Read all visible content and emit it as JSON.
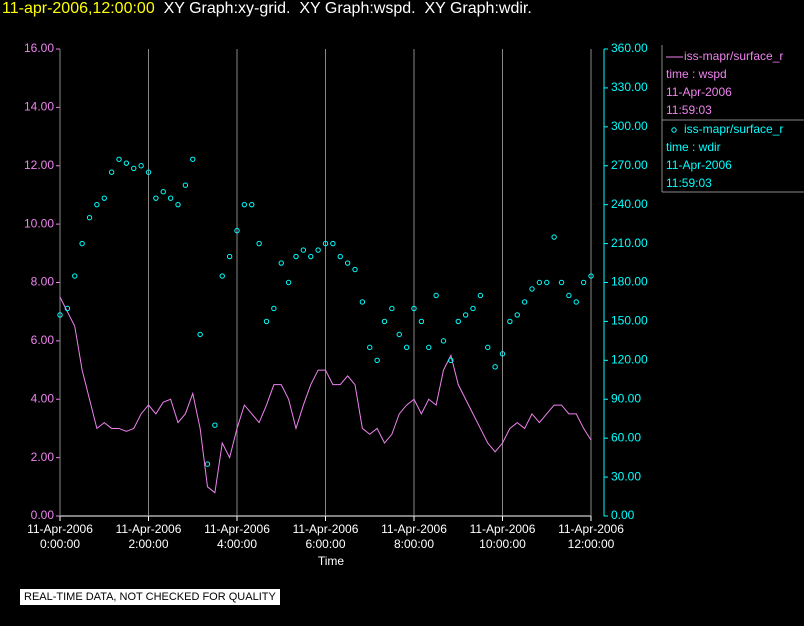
{
  "header": {
    "time": "11-apr-2006,12:00:00",
    "title": "XY Graph:xy-grid.  XY Graph:wspd.  XY Graph:wdir."
  },
  "note": "REAL-TIME DATA, NOT CHECKED FOR QUALITY",
  "chart_data": {
    "type": "line",
    "xlabel": "Time",
    "x": [
      "2006-04-11T00:00:00",
      "2006-04-11T00:10:00",
      "2006-04-11T00:20:00",
      "2006-04-11T00:30:00",
      "2006-04-11T00:40:00",
      "2006-04-11T00:50:00",
      "2006-04-11T01:00:00",
      "2006-04-11T01:10:00",
      "2006-04-11T01:20:00",
      "2006-04-11T01:30:00",
      "2006-04-11T01:40:00",
      "2006-04-11T01:50:00",
      "2006-04-11T02:00:00",
      "2006-04-11T02:10:00",
      "2006-04-11T02:20:00",
      "2006-04-11T02:30:00",
      "2006-04-11T02:40:00",
      "2006-04-11T02:50:00",
      "2006-04-11T03:00:00",
      "2006-04-11T03:10:00",
      "2006-04-11T03:20:00",
      "2006-04-11T03:30:00",
      "2006-04-11T03:40:00",
      "2006-04-11T03:50:00",
      "2006-04-11T04:00:00",
      "2006-04-11T04:10:00",
      "2006-04-11T04:20:00",
      "2006-04-11T04:30:00",
      "2006-04-11T04:40:00",
      "2006-04-11T04:50:00",
      "2006-04-11T05:00:00",
      "2006-04-11T05:10:00",
      "2006-04-11T05:20:00",
      "2006-04-11T05:30:00",
      "2006-04-11T05:40:00",
      "2006-04-11T05:50:00",
      "2006-04-11T06:00:00",
      "2006-04-11T06:10:00",
      "2006-04-11T06:20:00",
      "2006-04-11T06:30:00",
      "2006-04-11T06:40:00",
      "2006-04-11T06:50:00",
      "2006-04-11T07:00:00",
      "2006-04-11T07:10:00",
      "2006-04-11T07:20:00",
      "2006-04-11T07:30:00",
      "2006-04-11T07:40:00",
      "2006-04-11T07:50:00",
      "2006-04-11T08:00:00",
      "2006-04-11T08:10:00",
      "2006-04-11T08:20:00",
      "2006-04-11T08:30:00",
      "2006-04-11T08:40:00",
      "2006-04-11T08:50:00",
      "2006-04-11T09:00:00",
      "2006-04-11T09:10:00",
      "2006-04-11T09:20:00",
      "2006-04-11T09:30:00",
      "2006-04-11T09:40:00",
      "2006-04-11T09:50:00",
      "2006-04-11T10:00:00",
      "2006-04-11T10:10:00",
      "2006-04-11T10:20:00",
      "2006-04-11T10:30:00",
      "2006-04-11T10:40:00",
      "2006-04-11T10:50:00",
      "2006-04-11T11:00:00",
      "2006-04-11T11:10:00",
      "2006-04-11T11:20:00",
      "2006-04-11T11:30:00",
      "2006-04-11T11:40:00",
      "2006-04-11T11:50:00",
      "2006-04-11T12:00:00"
    ],
    "xlim": [
      "2006-04-11T00:00:00",
      "2006-04-11T12:00:00"
    ],
    "xticks": [
      {
        "value": "2006-04-11T00:00:00",
        "label": "11-Apr-2006\n0:00:00"
      },
      {
        "value": "2006-04-11T02:00:00",
        "label": "11-Apr-2006\n2:00:00"
      },
      {
        "value": "2006-04-11T04:00:00",
        "label": "11-Apr-2006\n4:00:00"
      },
      {
        "value": "2006-04-11T06:00:00",
        "label": "11-Apr-2006\n6:00:00"
      },
      {
        "value": "2006-04-11T08:00:00",
        "label": "11-Apr-2006\n8:00:00"
      },
      {
        "value": "2006-04-11T10:00:00",
        "label": "11-Apr-2006\n10:00:00"
      },
      {
        "value": "2006-04-11T12:00:00",
        "label": "11-Apr-2006\n12:00:00"
      }
    ],
    "ylim": [
      0,
      16
    ],
    "yticks": [
      {
        "value": 0,
        "label": "0.00"
      },
      {
        "value": 2,
        "label": "2.00"
      },
      {
        "value": 4,
        "label": "4.00"
      },
      {
        "value": 6,
        "label": "6.00"
      },
      {
        "value": 8,
        "label": "8.00"
      },
      {
        "value": 10,
        "label": "10.00"
      },
      {
        "value": 12,
        "label": "12.00"
      },
      {
        "value": 14,
        "label": "14.00"
      },
      {
        "value": 16,
        "label": "16.00"
      }
    ],
    "y2lim": [
      0,
      360
    ],
    "y2ticks": [
      {
        "value": 0,
        "label": "0.00"
      },
      {
        "value": 30,
        "label": "30.00"
      },
      {
        "value": 60,
        "label": "60.00"
      },
      {
        "value": 90,
        "label": "90.00"
      },
      {
        "value": 120,
        "label": "120.00"
      },
      {
        "value": 150,
        "label": "150.00"
      },
      {
        "value": 180,
        "label": "180.00"
      },
      {
        "value": 210,
        "label": "210.00"
      },
      {
        "value": 240,
        "label": "240.00"
      },
      {
        "value": 270,
        "label": "270.00"
      },
      {
        "value": 300,
        "label": "300.00"
      },
      {
        "value": 330,
        "label": "330.00"
      },
      {
        "value": 360,
        "label": "360.00"
      }
    ],
    "grid": true,
    "series": [
      {
        "name": "iss-mapr/surface_r",
        "type": "line",
        "color": "#ee82ee",
        "label": "time : wspd",
        "date": "11-Apr-2006",
        "time": "11:59:03",
        "values": [
          7.5,
          7.0,
          6.5,
          5.0,
          4.0,
          3.0,
          3.2,
          3.0,
          3.0,
          2.9,
          3.0,
          3.5,
          3.8,
          3.5,
          3.9,
          4.0,
          3.2,
          3.5,
          4.2,
          3.0,
          1.0,
          0.8,
          2.5,
          2.0,
          3.0,
          3.8,
          3.5,
          3.2,
          3.8,
          4.5,
          4.5,
          4.0,
          3.0,
          3.8,
          4.5,
          5.0,
          5.0,
          4.5,
          4.5,
          4.8,
          4.5,
          3.0,
          2.8,
          3.0,
          2.5,
          2.8,
          3.5,
          3.8,
          4.0,
          3.5,
          4.0,
          3.8,
          5.0,
          5.5,
          4.5,
          4.0,
          3.5,
          3.0,
          2.5,
          2.2,
          2.5,
          3.0,
          3.2,
          3.0,
          3.5,
          3.2,
          3.5,
          3.8,
          3.8,
          3.5,
          3.5,
          3.0,
          2.6
        ]
      },
      {
        "name": "iss-mapr/surface_r",
        "type": "scatter",
        "axis": "y2",
        "color": "#00ffff",
        "label": "time : wdir",
        "date": "11-Apr-2006",
        "time": "11:59:03",
        "values": [
          155,
          160,
          185,
          210,
          230,
          240,
          245,
          265,
          275,
          272,
          268,
          270,
          265,
          245,
          250,
          245,
          240,
          255,
          275,
          140,
          40,
          70,
          185,
          200,
          220,
          240,
          240,
          210,
          150,
          160,
          195,
          180,
          200,
          205,
          200,
          205,
          210,
          210,
          200,
          195,
          190,
          165,
          130,
          120,
          150,
          160,
          140,
          130,
          160,
          150,
          130,
          170,
          135,
          120,
          150,
          155,
          160,
          170,
          130,
          115,
          125,
          150,
          155,
          165,
          175,
          180,
          180,
          215,
          180,
          170,
          165,
          180,
          185
        ]
      }
    ]
  }
}
